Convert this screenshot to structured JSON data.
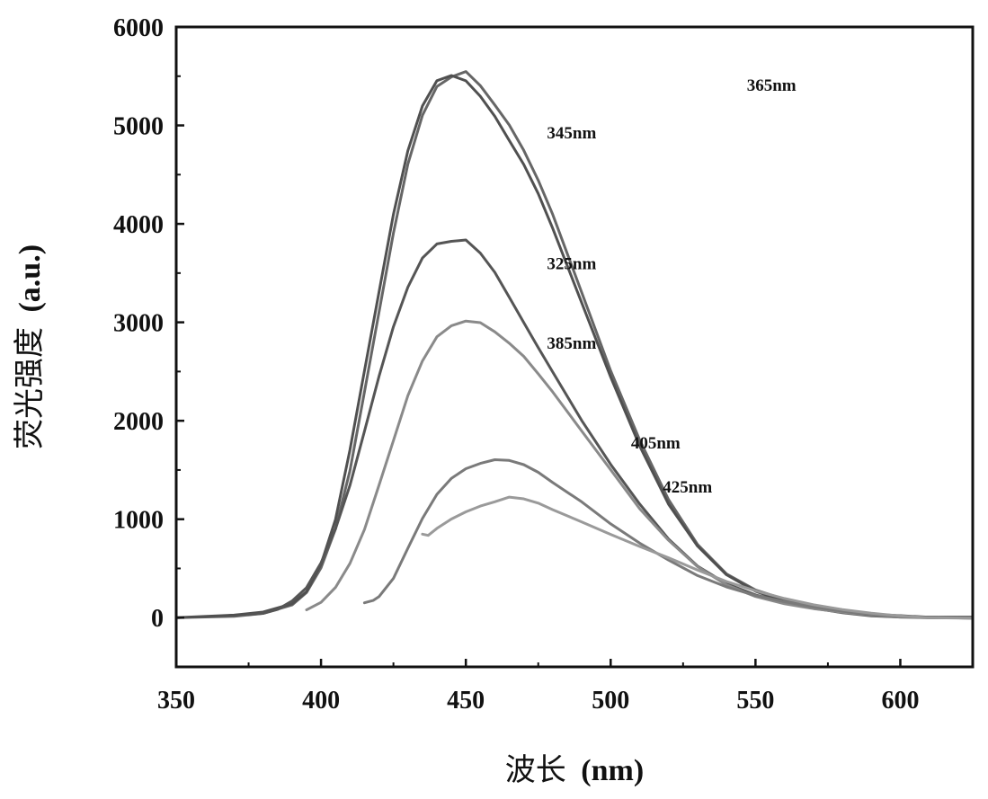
{
  "chart_data": {
    "type": "line",
    "xlabel": "波长 (nm)",
    "xlabel_parts": [
      "波长",
      "(nm)"
    ],
    "ylabel": "荧光强度 (a.u.)",
    "ylabel_parts": [
      "荧光强度",
      "(a.u.)"
    ],
    "xlim": [
      350,
      625
    ],
    "ylim": [
      -500,
      6000
    ],
    "x_ticks": [
      350,
      400,
      450,
      500,
      550,
      600
    ],
    "y_ticks": [
      0,
      1000,
      2000,
      3000,
      4000,
      5000,
      6000
    ],
    "grid": false,
    "legend": "none",
    "series": [
      {
        "name": "365nm",
        "color": "#666666",
        "x": [
          350,
          370,
          380,
          390,
          395,
          400,
          405,
          410,
          415,
          420,
          425,
          430,
          435,
          440,
          445,
          450,
          455,
          460,
          465,
          470,
          475,
          480,
          490,
          500,
          510,
          520,
          530,
          540,
          550,
          560,
          570,
          580,
          590,
          600,
          610,
          625
        ],
        "y": [
          0,
          20,
          50,
          130,
          250,
          500,
          900,
          1500,
          2300,
          3100,
          3900,
          4600,
          5100,
          5400,
          5500,
          5550,
          5400,
          5200,
          5000,
          4750,
          4450,
          4100,
          3300,
          2500,
          1800,
          1200,
          750,
          450,
          280,
          180,
          110,
          60,
          30,
          15,
          5,
          0
        ]
      },
      {
        "name": "345nm",
        "color": "#505050",
        "x": [
          350,
          370,
          380,
          390,
          395,
          400,
          405,
          410,
          415,
          420,
          425,
          430,
          435,
          440,
          445,
          450,
          455,
          460,
          465,
          470,
          475,
          480,
          490,
          500,
          510,
          520,
          530,
          540,
          550,
          560,
          570,
          580,
          590,
          600,
          610,
          625
        ],
        "y": [
          0,
          20,
          50,
          140,
          270,
          550,
          1000,
          1700,
          2500,
          3300,
          4100,
          4750,
          5200,
          5450,
          5500,
          5450,
          5300,
          5100,
          4850,
          4600,
          4300,
          3950,
          3200,
          2450,
          1750,
          1150,
          720,
          430,
          270,
          170,
          100,
          55,
          28,
          14,
          5,
          0
        ]
      },
      {
        "name": "325nm",
        "color": "#555555",
        "x": [
          375,
          380,
          385,
          390,
          395,
          400,
          405,
          410,
          415,
          420,
          425,
          430,
          435,
          440,
          445,
          450,
          455,
          460,
          465,
          470,
          475,
          480,
          490,
          500,
          510,
          520,
          530,
          540,
          550,
          560,
          570,
          580,
          590,
          600,
          610,
          625
        ],
        "y": [
          30,
          50,
          90,
          170,
          300,
          550,
          900,
          1350,
          1900,
          2450,
          2950,
          3350,
          3650,
          3800,
          3830,
          3840,
          3700,
          3500,
          3250,
          3000,
          2750,
          2500,
          2000,
          1550,
          1150,
          800,
          530,
          350,
          230,
          150,
          90,
          50,
          25,
          12,
          5,
          0
        ]
      },
      {
        "name": "385nm",
        "color": "#8a8a8a",
        "x": [
          395,
          400,
          405,
          410,
          415,
          420,
          425,
          430,
          435,
          440,
          445,
          450,
          455,
          460,
          465,
          470,
          475,
          480,
          490,
          500,
          510,
          520,
          530,
          540,
          550,
          560,
          570,
          580,
          590,
          600,
          610,
          625
        ],
        "y": [
          80,
          150,
          300,
          550,
          900,
          1350,
          1800,
          2250,
          2600,
          2850,
          2970,
          3020,
          3000,
          2900,
          2780,
          2650,
          2480,
          2300,
          1900,
          1500,
          1100,
          780,
          520,
          340,
          220,
          140,
          85,
          50,
          25,
          12,
          5,
          0
        ]
      },
      {
        "name": "405nm",
        "color": "#7a7a7a",
        "x": [
          415,
          418,
          420,
          425,
          430,
          435,
          440,
          445,
          450,
          455,
          460,
          465,
          470,
          475,
          480,
          490,
          500,
          510,
          520,
          530,
          540,
          550,
          560,
          570,
          580,
          590,
          600,
          610,
          625
        ],
        "y": [
          150,
          180,
          220,
          400,
          700,
          1000,
          1250,
          1420,
          1520,
          1570,
          1600,
          1590,
          1550,
          1480,
          1380,
          1180,
          950,
          750,
          580,
          430,
          320,
          230,
          160,
          100,
          60,
          30,
          15,
          5,
          0
        ]
      },
      {
        "name": "425nm",
        "color": "#9a9a9a",
        "x": [
          435,
          437,
          440,
          445,
          450,
          455,
          460,
          465,
          470,
          475,
          480,
          490,
          500,
          510,
          520,
          530,
          540,
          550,
          560,
          570,
          580,
          590,
          600,
          610,
          625
        ],
        "y": [
          850,
          830,
          900,
          1000,
          1080,
          1140,
          1180,
          1220,
          1200,
          1160,
          1100,
          980,
          850,
          720,
          600,
          480,
          370,
          280,
          200,
          130,
          75,
          40,
          18,
          6,
          0
        ]
      }
    ],
    "annotations": [
      {
        "text": "365nm",
        "x": 547,
        "y": 5350
      },
      {
        "text": "345nm",
        "x": 478,
        "y": 4870
      },
      {
        "text": "325nm",
        "x": 478,
        "y": 3540
      },
      {
        "text": "385nm",
        "x": 478,
        "y": 2730
      },
      {
        "text": "405nm",
        "x": 507,
        "y": 1720
      },
      {
        "text": "425nm",
        "x": 518,
        "y": 1270
      }
    ]
  }
}
